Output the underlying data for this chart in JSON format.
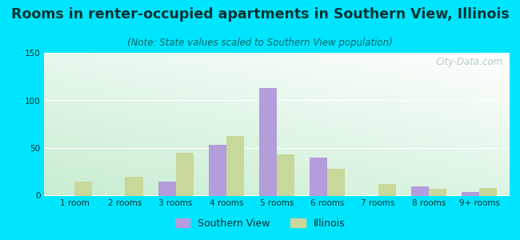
{
  "title": "Rooms in renter-occupied apartments in Southern View, Illinois",
  "subtitle": "(Note: State values scaled to Southern View population)",
  "categories": [
    "1 room",
    "2 rooms",
    "3 rooms",
    "4 rooms",
    "5 rooms",
    "6 rooms",
    "7 rooms",
    "8 rooms",
    "9+ rooms"
  ],
  "southern_view": [
    0,
    0,
    15,
    53,
    113,
    40,
    0,
    10,
    4
  ],
  "illinois": [
    15,
    20,
    45,
    63,
    43,
    28,
    12,
    7,
    8
  ],
  "sv_color": "#b39ddb",
  "il_color": "#c8d89a",
  "bg_outer": "#00e5ff",
  "ylim": [
    0,
    150
  ],
  "yticks": [
    0,
    50,
    100,
    150
  ],
  "bar_width": 0.35,
  "title_fontsize": 12.5,
  "subtitle_fontsize": 8.5,
  "tick_fontsize": 7.5,
  "legend_fontsize": 9,
  "title_color": "#003333",
  "subtitle_color": "#006666",
  "tick_color": "#003333",
  "watermark": "City-Data.com"
}
